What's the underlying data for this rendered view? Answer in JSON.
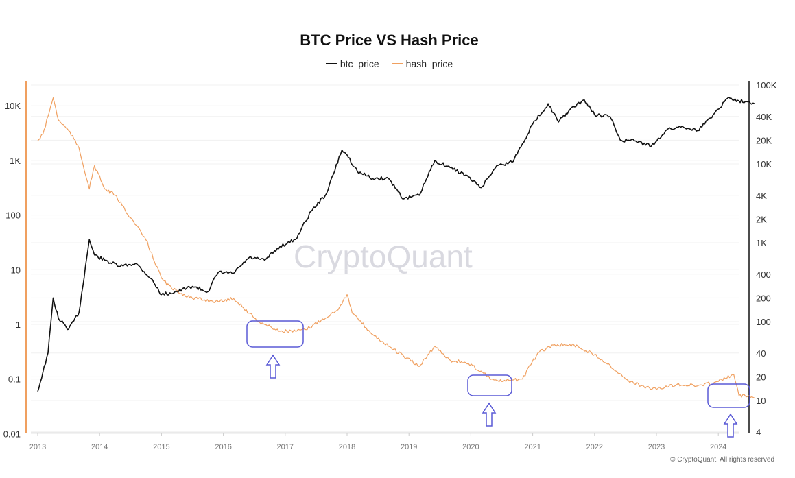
{
  "chart_data": {
    "type": "line",
    "title": "BTC Price VS Hash Price",
    "legend_position": "top",
    "grid": true,
    "x_ticks": [
      "2013",
      "2014",
      "2015",
      "2016",
      "2017",
      "2018",
      "2019",
      "2020",
      "2021",
      "2022",
      "2023",
      "2024"
    ],
    "left_axis": {
      "scale": "log",
      "range": [
        0.01,
        20000
      ],
      "ticks": [
        "10K",
        "1K",
        "100",
        "10",
        "1",
        "0.1",
        "0.01"
      ],
      "tick_values": [
        10000,
        1000,
        100,
        10,
        1,
        0.1,
        0.01
      ],
      "color": "#f0a060"
    },
    "right_axis": {
      "scale": "log",
      "range": [
        4,
        100000
      ],
      "ticks": [
        "100K",
        "40K",
        "20K",
        "10K",
        "4K",
        "2K",
        "1K",
        "400",
        "200",
        "100",
        "40",
        "20",
        "10",
        "4"
      ],
      "tick_values": [
        100000,
        40000,
        20000,
        10000,
        4000,
        2000,
        1000,
        400,
        200,
        100,
        40,
        20,
        10,
        4
      ],
      "color": "#111111"
    },
    "series": [
      {
        "name": "btc_price",
        "axis": "right",
        "color": "#111111",
        "x": [
          "2013-01",
          "2013-03",
          "2013-04",
          "2013-05",
          "2013-07",
          "2013-09",
          "2013-11",
          "2013-12",
          "2014-02",
          "2014-05",
          "2014-08",
          "2014-11",
          "2015-01",
          "2015-04",
          "2015-07",
          "2015-10",
          "2015-12",
          "2016-03",
          "2016-06",
          "2016-09",
          "2016-12",
          "2017-03",
          "2017-06",
          "2017-09",
          "2017-12",
          "2018-01",
          "2018-03",
          "2018-06",
          "2018-09",
          "2018-12",
          "2019-03",
          "2019-06",
          "2019-09",
          "2019-12",
          "2020-03",
          "2020-06",
          "2020-09",
          "2020-11",
          "2021-01",
          "2021-04",
          "2021-06",
          "2021-08",
          "2021-11",
          "2022-01",
          "2022-04",
          "2022-06",
          "2022-09",
          "2022-12",
          "2023-03",
          "2023-06",
          "2023-09",
          "2023-12",
          "2024-03",
          "2024-05",
          "2024-07",
          "2024-08"
        ],
        "values": [
          13,
          40,
          200,
          110,
          80,
          130,
          1100,
          700,
          600,
          500,
          550,
          350,
          220,
          240,
          280,
          240,
          420,
          410,
          650,
          600,
          900,
          1100,
          2500,
          4200,
          15000,
          13000,
          8000,
          6500,
          6600,
          3600,
          4000,
          11000,
          9000,
          7200,
          5000,
          9500,
          10500,
          18000,
          32000,
          58000,
          34000,
          47000,
          65000,
          42000,
          40000,
          20000,
          19500,
          16800,
          27000,
          30000,
          26500,
          42000,
          70000,
          63000,
          62000,
          58000
        ]
      },
      {
        "name": "hash_price",
        "axis": "left",
        "color": "#f0a060",
        "x": [
          "2013-01",
          "2013-02",
          "2013-04",
          "2013-05",
          "2013-07",
          "2013-09",
          "2013-11",
          "2013-12",
          "2014-02",
          "2014-04",
          "2014-07",
          "2014-10",
          "2015-01",
          "2015-03",
          "2015-07",
          "2015-12",
          "2016-03",
          "2016-06",
          "2016-08",
          "2016-12",
          "2017-03",
          "2017-05",
          "2017-08",
          "2017-11",
          "2018-01",
          "2018-02",
          "2018-06",
          "2018-09",
          "2018-12",
          "2019-03",
          "2019-06",
          "2019-09",
          "2019-12",
          "2020-03",
          "2020-05",
          "2020-07",
          "2020-11",
          "2021-02",
          "2021-05",
          "2021-09",
          "2022-01",
          "2022-04",
          "2022-07",
          "2022-10",
          "2023-01",
          "2023-05",
          "2023-09",
          "2024-01",
          "2024-04",
          "2024-05",
          "2024-07",
          "2024-08"
        ],
        "values": [
          2300,
          3000,
          14000,
          5500,
          3500,
          1700,
          300,
          800,
          300,
          230,
          90,
          35,
          7,
          4.5,
          3,
          2.6,
          3,
          1.6,
          1.1,
          0.75,
          0.75,
          0.8,
          1.2,
          1.8,
          3.5,
          1.6,
          0.65,
          0.4,
          0.26,
          0.17,
          0.4,
          0.22,
          0.2,
          0.14,
          0.1,
          0.09,
          0.1,
          0.3,
          0.42,
          0.42,
          0.28,
          0.18,
          0.1,
          0.075,
          0.065,
          0.08,
          0.075,
          0.09,
          0.12,
          0.05,
          0.05,
          0.045
        ]
      }
    ],
    "annotations": [
      {
        "type": "box-with-up-arrow",
        "period": [
          "2016-07",
          "2017-05"
        ],
        "color": "#5a5ad6"
      },
      {
        "type": "box-with-up-arrow",
        "period": [
          "2020-03",
          "2020-11"
        ],
        "color": "#5a5ad6"
      },
      {
        "type": "box-with-up-arrow",
        "period": [
          "2024-03",
          "2024-10"
        ],
        "color": "#5a5ad6"
      }
    ]
  },
  "watermark": "CryptoQuant",
  "copyright": "© CryptoQuant. All rights reserved"
}
